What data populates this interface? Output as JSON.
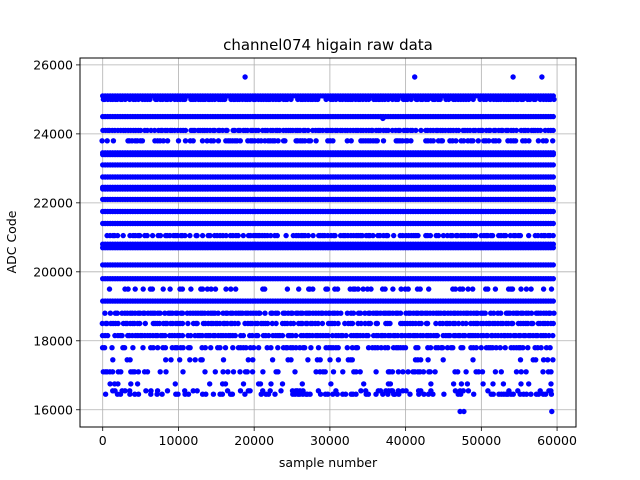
{
  "chart_data": {
    "type": "scatter",
    "title": "channel074 higain raw data",
    "xlabel": "sample number",
    "ylabel": "ADC Code",
    "xlim": [
      -3000,
      62500
    ],
    "ylim": [
      15500,
      26200
    ],
    "xticks": [
      0,
      10000,
      20000,
      30000,
      40000,
      50000,
      60000
    ],
    "xtick_labels": [
      "0",
      "10000",
      "20000",
      "30000",
      "40000",
      "50000",
      "60000"
    ],
    "yticks": [
      16000,
      18000,
      20000,
      22000,
      24000,
      26000
    ],
    "ytick_labels": [
      "16000",
      "18000",
      "20000",
      "22000",
      "24000",
      "26000"
    ],
    "grid": true,
    "marker_color": "#0000ff",
    "x_range": [
      0,
      59500
    ],
    "bands": [
      {
        "y": 25100,
        "density": 1.0
      },
      {
        "y": 25000,
        "density": 0.9
      },
      {
        "y": 24500,
        "density": 1.0
      },
      {
        "y": 24100,
        "density": 0.9
      },
      {
        "y": 23800,
        "density": 0.6
      },
      {
        "y": 23450,
        "density": 1.0
      },
      {
        "y": 23400,
        "density": 1.0
      },
      {
        "y": 23100,
        "density": 1.0
      },
      {
        "y": 22750,
        "density": 1.0
      },
      {
        "y": 22450,
        "density": 1.0
      },
      {
        "y": 22400,
        "density": 1.0
      },
      {
        "y": 22100,
        "density": 1.0
      },
      {
        "y": 21750,
        "density": 1.0
      },
      {
        "y": 21400,
        "density": 1.0
      },
      {
        "y": 21050,
        "density": 0.8
      },
      {
        "y": 20800,
        "density": 1.0
      },
      {
        "y": 20700,
        "density": 1.0
      },
      {
        "y": 20200,
        "density": 1.0
      },
      {
        "y": 19800,
        "density": 1.0
      },
      {
        "y": 19500,
        "density": 0.3
      },
      {
        "y": 19150,
        "density": 1.0
      },
      {
        "y": 18800,
        "density": 0.9
      },
      {
        "y": 18500,
        "density": 0.8
      },
      {
        "y": 18150,
        "density": 0.9
      },
      {
        "y": 17800,
        "density": 0.55
      },
      {
        "y": 17450,
        "density": 0.2
      },
      {
        "y": 17100,
        "density": 0.35
      },
      {
        "y": 16750,
        "density": 0.2
      },
      {
        "y": 16550,
        "density": 0.25
      },
      {
        "y": 16450,
        "density": 0.4
      }
    ],
    "outliers": [
      {
        "x": 18800,
        "y": 25650
      },
      {
        "x": 41200,
        "y": 25650
      },
      {
        "x": 54200,
        "y": 25650
      },
      {
        "x": 58000,
        "y": 25650
      },
      {
        "x": 37000,
        "y": 24450
      },
      {
        "x": 47200,
        "y": 15950
      },
      {
        "x": 47700,
        "y": 15950
      },
      {
        "x": 59300,
        "y": 15950
      }
    ]
  }
}
